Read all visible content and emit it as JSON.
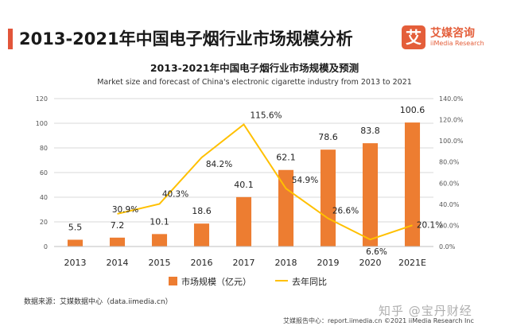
{
  "header": {
    "title": "2013-2021年中国电子烟行业市场规模分析"
  },
  "logo": {
    "glyph": "艾",
    "name": "艾媒咨询",
    "subtitle": "iiMedia Research"
  },
  "chart_data": {
    "type": "bar",
    "title": "2013-2021年中国电子烟行业市场规模及预测",
    "subtitle": "Market size and forecast of China's electronic cigarette industry from 2013 to 2021",
    "categories": [
      "2013",
      "2014",
      "2015",
      "2016",
      "2017",
      "2018",
      "2019",
      "2020",
      "2021E"
    ],
    "series": [
      {
        "name": "市场规模（亿元）",
        "type": "bar",
        "axis": "left",
        "color": "#ed7d31",
        "values": [
          5.5,
          7.2,
          10.1,
          18.6,
          40.1,
          62.1,
          78.6,
          83.8,
          100.6
        ],
        "labels": [
          "5.5",
          "7.2",
          "10.1",
          "18.6",
          "40.1",
          "62.1",
          "78.6",
          "83.8",
          "100.6"
        ]
      },
      {
        "name": "去年同比",
        "type": "line",
        "axis": "right",
        "color": "#ffc000",
        "values": [
          null,
          30.9,
          40.3,
          84.2,
          115.6,
          54.9,
          26.6,
          6.6,
          20.1
        ],
        "labels": [
          "",
          "30.9%",
          "40.3%",
          "84.2%",
          "115.6%",
          "54.9%",
          "26.6%",
          "6.6%",
          "20.1%"
        ]
      }
    ],
    "yleft": {
      "min": 0,
      "max": 120,
      "ticks": [
        "0",
        "20",
        "40",
        "60",
        "80",
        "100",
        "120"
      ]
    },
    "yright": {
      "min": 0,
      "max": 140,
      "ticks": [
        "0.0%",
        "20.0%",
        "40.0%",
        "60.0%",
        "80.0%",
        "100.0%",
        "120.0%",
        "140.0%"
      ]
    },
    "grid": true,
    "legend": "bottom"
  },
  "source": "数据来源：艾媒数据中心（data.iimedia.cn）",
  "watermark": "知乎 @宝丹财经",
  "footer": "艾媒报告中心：report.iimedia.cn   ©2021  iiMedia Research  Inc",
  "colors": {
    "accent": "#e2553a",
    "bar": "#ed7d31",
    "line": "#ffc000",
    "grid": "#d9d9d9"
  }
}
